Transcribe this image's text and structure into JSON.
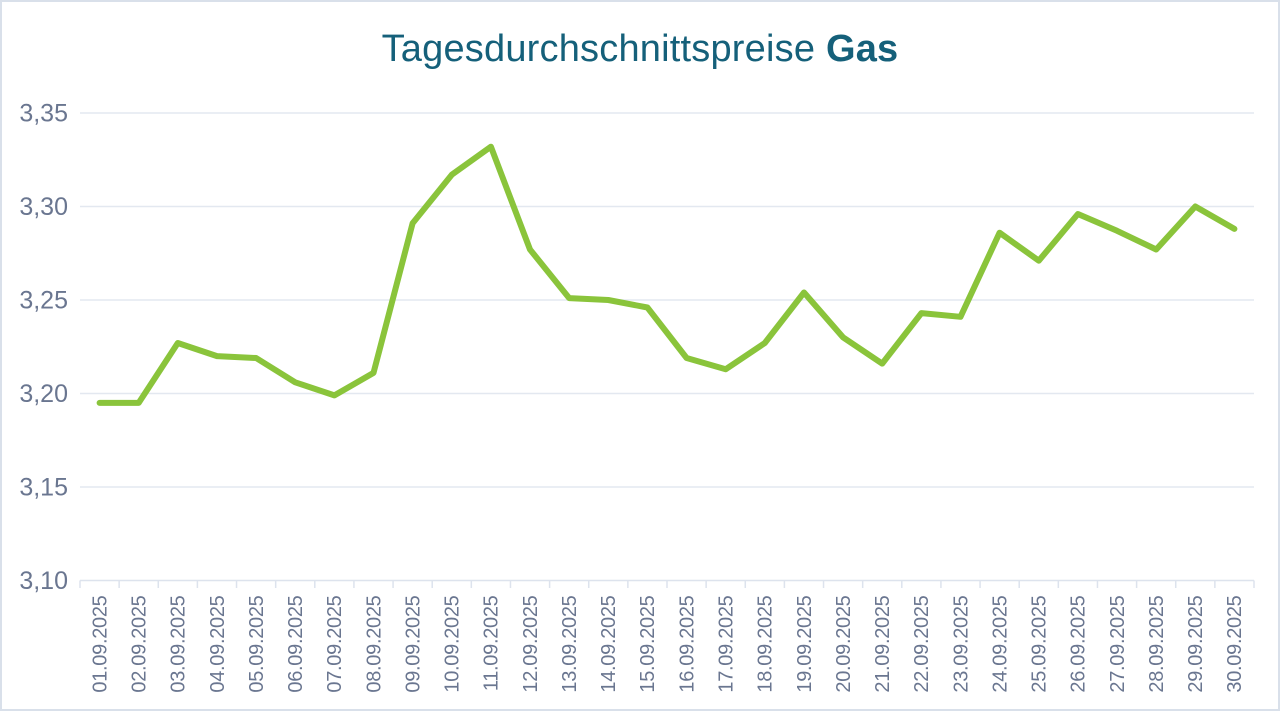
{
  "title": {
    "regular": "Tagesdurchschnittspreise",
    "bold": "Gas"
  },
  "colors": {
    "title": "#15607a",
    "axis_label": "#6a7690",
    "gridline": "#e3e8f0",
    "axis": "#dde3ed",
    "line": "#8ac43b",
    "border": "#d9e0ea",
    "background": "#ffffff"
  },
  "chart_data": {
    "type": "line",
    "title": "Tagesdurchschnittspreise Gas",
    "x": [
      "01.09.2025",
      "02.09.2025",
      "03.09.2025",
      "04.09.2025",
      "05.09.2025",
      "06.09.2025",
      "07.09.2025",
      "08.09.2025",
      "09.09.2025",
      "10.09.2025",
      "11.09.2025",
      "12.09.2025",
      "13.09.2025",
      "14.09.2025",
      "15.09.2025",
      "16.09.2025",
      "17.09.2025",
      "18.09.2025",
      "19.09.2025",
      "20.09.2025",
      "21.09.2025",
      "22.09.2025",
      "23.09.2025",
      "24.09.2025",
      "25.09.2025",
      "26.09.2025",
      "27.09.2025",
      "28.09.2025",
      "29.09.2025",
      "30.09.2025"
    ],
    "values": [
      3.195,
      3.195,
      3.227,
      3.22,
      3.219,
      3.206,
      3.199,
      3.211,
      3.291,
      3.317,
      3.332,
      3.277,
      3.251,
      3.25,
      3.246,
      3.219,
      3.213,
      3.227,
      3.254,
      3.23,
      3.216,
      3.243,
      3.241,
      3.286,
      3.271,
      3.296,
      3.287,
      3.277,
      3.3,
      3.288
    ],
    "xlabel": "",
    "ylabel": "",
    "ylim": [
      3.1,
      3.35
    ],
    "ytick_step": 0.05,
    "ytick_labels": [
      "3,10",
      "3,15",
      "3,20",
      "3,25",
      "3,30",
      "3,35"
    ],
    "grid": true,
    "legend": false,
    "decimal_separator": ","
  }
}
